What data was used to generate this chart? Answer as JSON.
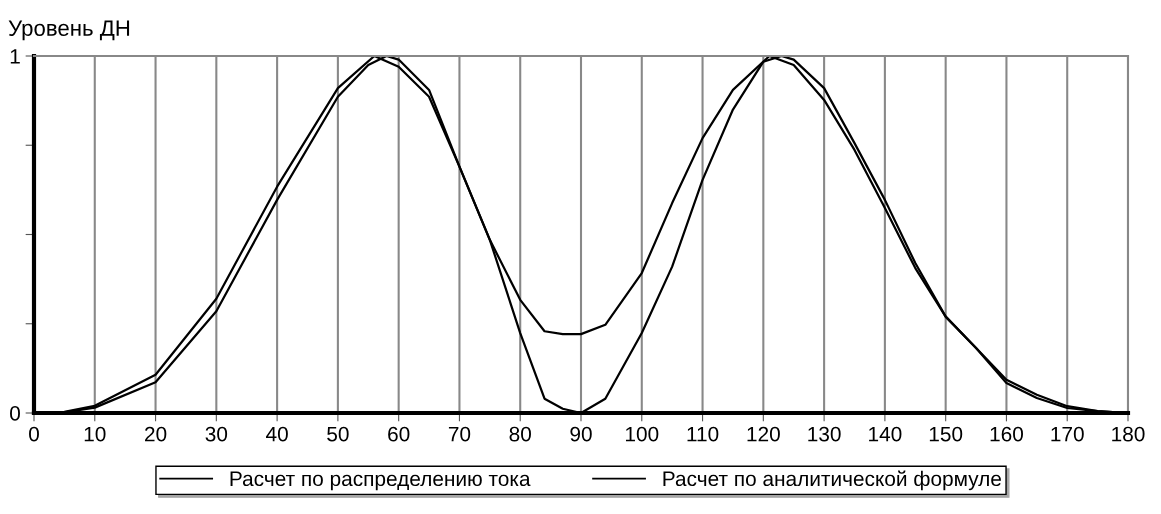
{
  "chart_data": {
    "type": "line",
    "ylabel": "Уровень ДН",
    "xlim": [
      0,
      180
    ],
    "ylim": [
      0,
      1
    ],
    "xticks": [
      0,
      10,
      20,
      30,
      40,
      50,
      60,
      70,
      80,
      90,
      100,
      110,
      120,
      130,
      140,
      150,
      160,
      170,
      180
    ],
    "yticks": [
      0,
      {
        "value": 0.25,
        "label": null
      },
      {
        "value": 0.5,
        "label": null
      },
      {
        "value": 0.75,
        "label": null
      },
      1
    ],
    "grid": "x",
    "legend": "bottom",
    "marker": "none",
    "line_style": "solid",
    "series": [
      {
        "name": "Расчет по распределению тока",
        "color": "#000000",
        "x": [
          0,
          5,
          10,
          20,
          30,
          40,
          50,
          56,
          60,
          65,
          70,
          75,
          80,
          84,
          87,
          90,
          94,
          100,
          105,
          110,
          115,
          121,
          125,
          130,
          135,
          140,
          145,
          150,
          155,
          160,
          165,
          170,
          175,
          180
        ],
        "values": [
          0,
          0.003,
          0.02,
          0.107,
          0.32,
          0.634,
          0.91,
          1,
          0.97,
          0.886,
          0.69,
          0.485,
          0.317,
          0.229,
          0.221,
          0.221,
          0.247,
          0.392,
          0.588,
          0.77,
          0.905,
          1,
          0.975,
          0.877,
          0.737,
          0.574,
          0.406,
          0.27,
          0.182,
          0.093,
          0.051,
          0.019,
          0.005,
          0
        ]
      },
      {
        "name": "Расчет по аналитической формуле",
        "color": "#000000",
        "x": [
          0,
          5,
          10,
          20,
          30,
          40,
          50,
          55,
          58,
          60,
          65,
          70,
          75,
          80,
          84,
          87,
          90,
          94,
          100,
          105,
          110,
          115,
          120,
          123,
          125,
          130,
          135,
          140,
          145,
          150,
          155,
          160,
          165,
          170,
          175,
          180
        ],
        "values": [
          0,
          0.002,
          0.015,
          0.086,
          0.285,
          0.597,
          0.886,
          0.975,
          1,
          0.99,
          0.905,
          0.69,
          0.485,
          0.224,
          0.04,
          0.012,
          0,
          0.04,
          0.224,
          0.41,
          0.653,
          0.85,
          0.984,
          1,
          0.99,
          0.91,
          0.756,
          0.597,
          0.42,
          0.27,
          0.182,
          0.084,
          0.042,
          0.014,
          0.005,
          0
        ]
      }
    ]
  }
}
